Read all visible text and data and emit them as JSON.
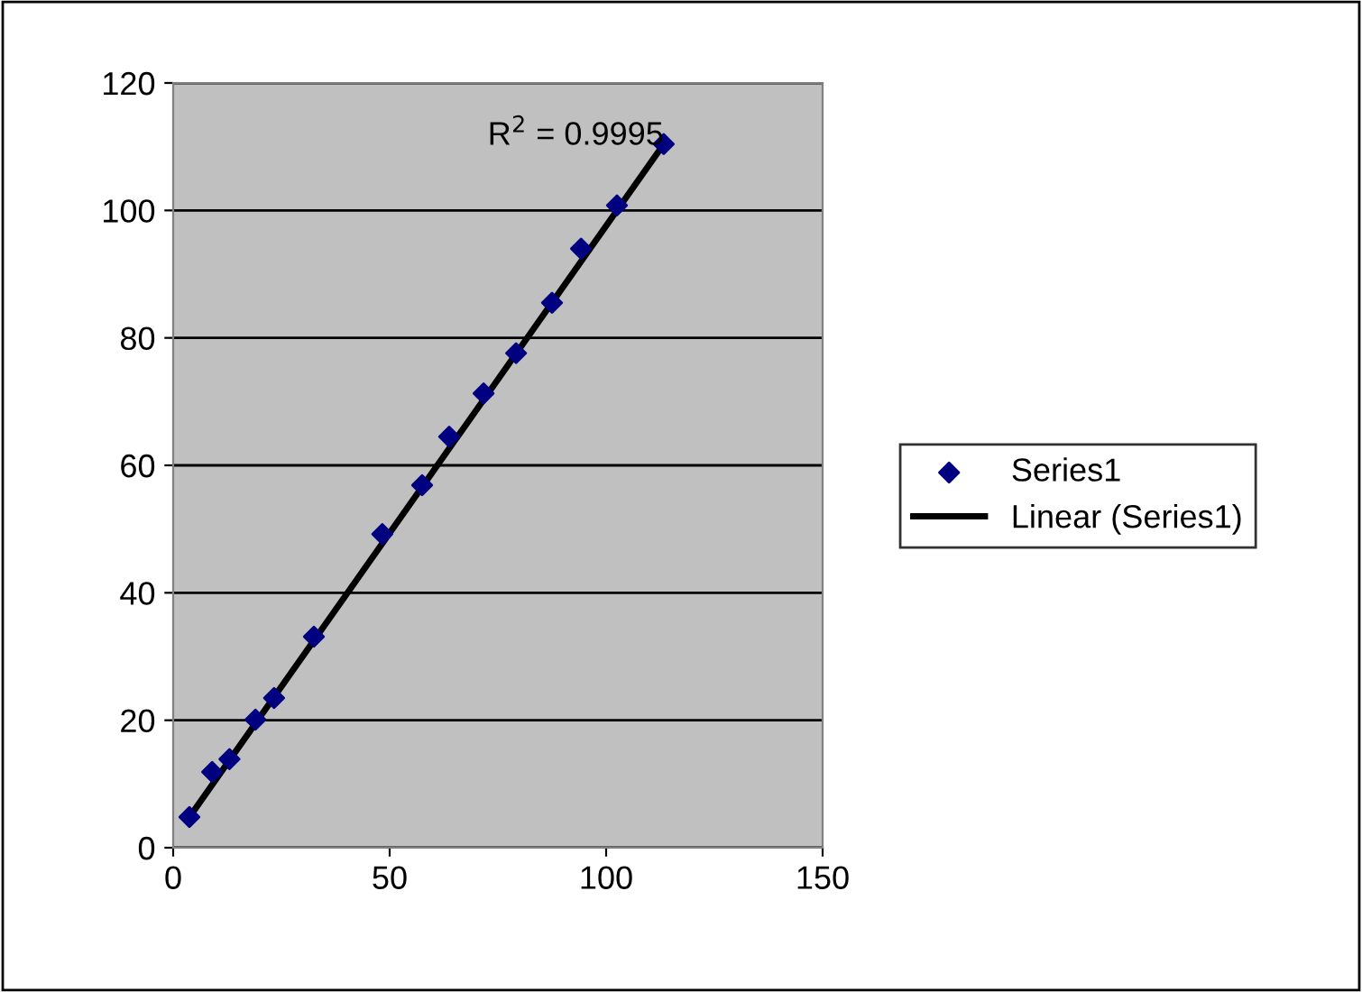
{
  "chart_data": {
    "type": "scatter",
    "x": [
      3.75,
      9,
      13,
      19,
      23.3,
      32.5,
      48.3,
      57.5,
      63.75,
      71.7,
      79.2,
      87.5,
      94.2,
      102.5,
      113.3
    ],
    "series": [
      {
        "name": "Series1",
        "color": "#000080",
        "marker": "diamond",
        "values": [
          4.8,
          11.9,
          13.9,
          20.1,
          23.5,
          33.1,
          49.2,
          56.9,
          64.5,
          71.3,
          77.6,
          85.5,
          94,
          100.8,
          110.4
        ]
      },
      {
        "name": "Linear (Series1)",
        "color": "#000000",
        "type": "line",
        "marker": "none",
        "line_style": "solid",
        "x": [
          3.75,
          113.3
        ],
        "values": [
          4.8,
          110.4
        ]
      }
    ],
    "xlim": [
      0,
      150
    ],
    "xticks": [
      0,
      50,
      100,
      150
    ],
    "ylim": [
      0,
      120
    ],
    "yticks": [
      0,
      20,
      40,
      60,
      80,
      100,
      120
    ],
    "grid": "y",
    "legend": "right",
    "annotations": [
      "R$^{2}$ = 0.9995"
    ]
  }
}
